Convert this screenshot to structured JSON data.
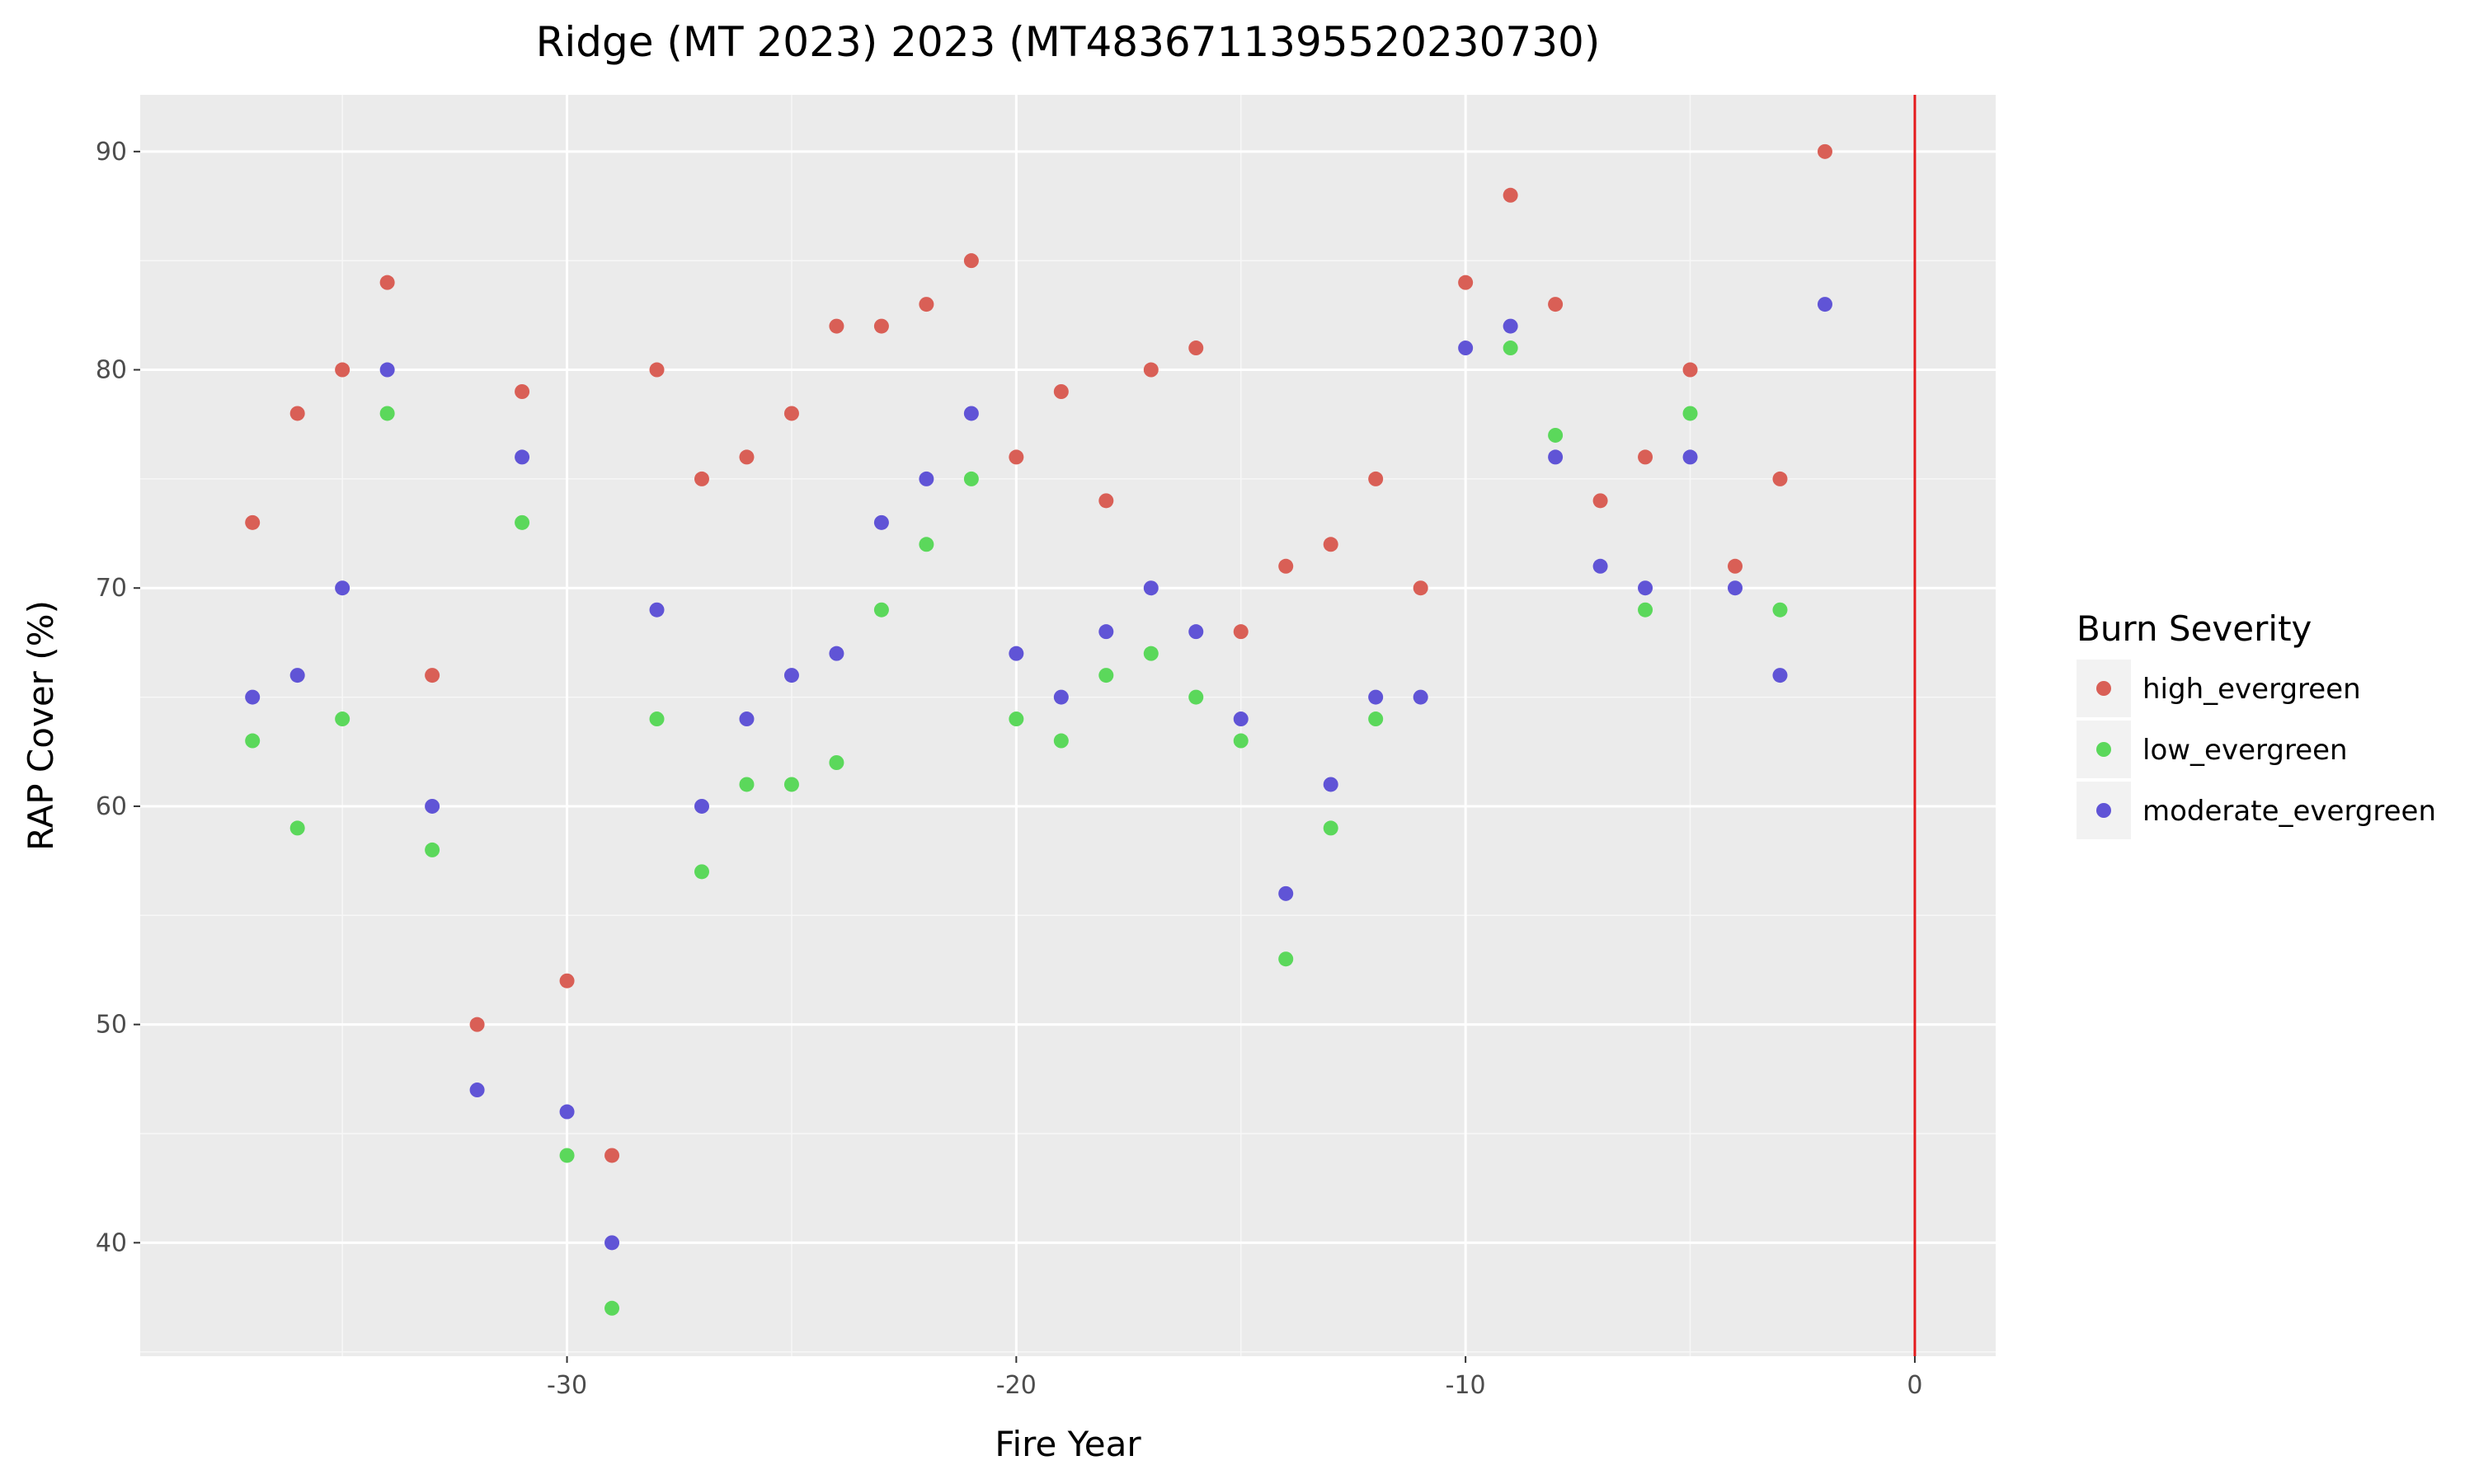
{
  "chart_data": {
    "type": "scatter",
    "title": "Ridge (MT 2023) 2023 (MT4836711395520230730)",
    "xlabel": "Fire Year",
    "ylabel": "RAP Cover (%)",
    "xlim": [
      -39.5,
      1.8
    ],
    "ylim": [
      34.8,
      92.6
    ],
    "xticks": [
      -30,
      -20,
      -10,
      0
    ],
    "yticks": [
      40,
      50,
      60,
      70,
      80,
      90
    ],
    "grid": true,
    "reference_line": {
      "x": 0,
      "color": "#e41a1c"
    },
    "legend": {
      "title": "Burn Severity",
      "position": "right"
    },
    "series": [
      {
        "name": "high_evergreen",
        "color": "#d95f56",
        "points": [
          [
            -37,
            73
          ],
          [
            -36,
            78
          ],
          [
            -35,
            80
          ],
          [
            -34,
            84
          ],
          [
            -33,
            66
          ],
          [
            -32,
            50
          ],
          [
            -31,
            79
          ],
          [
            -30,
            52
          ],
          [
            -29,
            44
          ],
          [
            -28,
            80
          ],
          [
            -27,
            75
          ],
          [
            -26,
            76
          ],
          [
            -25,
            78
          ],
          [
            -24,
            82
          ],
          [
            -23,
            82
          ],
          [
            -22,
            83
          ],
          [
            -21,
            85
          ],
          [
            -20,
            76
          ],
          [
            -19,
            79
          ],
          [
            -18,
            74
          ],
          [
            -17,
            80
          ],
          [
            -16,
            81
          ],
          [
            -15,
            68
          ],
          [
            -14,
            71
          ],
          [
            -13,
            72
          ],
          [
            -12,
            75
          ],
          [
            -11,
            70
          ],
          [
            -10,
            84
          ],
          [
            -9,
            88
          ],
          [
            -8,
            83
          ],
          [
            -7,
            74
          ],
          [
            -6,
            76
          ],
          [
            -5,
            80
          ],
          [
            -4,
            71
          ],
          [
            -3,
            75
          ],
          [
            -2,
            90
          ]
        ]
      },
      {
        "name": "low_evergreen",
        "color": "#5bd85b",
        "points": [
          [
            -37,
            63
          ],
          [
            -36,
            59
          ],
          [
            -35,
            64
          ],
          [
            -34,
            78
          ],
          [
            -33,
            58
          ],
          [
            -31,
            73
          ],
          [
            -30,
            44
          ],
          [
            -29,
            37
          ],
          [
            -28,
            64
          ],
          [
            -27,
            57
          ],
          [
            -26,
            61
          ],
          [
            -25,
            61
          ],
          [
            -24,
            62
          ],
          [
            -23,
            69
          ],
          [
            -22,
            72
          ],
          [
            -21,
            75
          ],
          [
            -20,
            64
          ],
          [
            -19,
            63
          ],
          [
            -18,
            66
          ],
          [
            -17,
            67
          ],
          [
            -16,
            65
          ],
          [
            -15,
            63
          ],
          [
            -14,
            53
          ],
          [
            -13,
            59
          ],
          [
            -12,
            64
          ],
          [
            -9,
            81
          ],
          [
            -8,
            77
          ],
          [
            -6,
            69
          ],
          [
            -5,
            78
          ],
          [
            -3,
            69
          ]
        ]
      },
      {
        "name": "moderate_evergreen",
        "color": "#6054d6",
        "points": [
          [
            -37,
            65
          ],
          [
            -36,
            66
          ],
          [
            -35,
            70
          ],
          [
            -34,
            80
          ],
          [
            -33,
            60
          ],
          [
            -32,
            47
          ],
          [
            -31,
            76
          ],
          [
            -30,
            46
          ],
          [
            -29,
            40
          ],
          [
            -28,
            69
          ],
          [
            -27,
            60
          ],
          [
            -26,
            64
          ],
          [
            -25,
            66
          ],
          [
            -24,
            67
          ],
          [
            -23,
            73
          ],
          [
            -22,
            75
          ],
          [
            -21,
            78
          ],
          [
            -20,
            67
          ],
          [
            -19,
            65
          ],
          [
            -18,
            68
          ],
          [
            -17,
            70
          ],
          [
            -16,
            68
          ],
          [
            -15,
            64
          ],
          [
            -14,
            56
          ],
          [
            -13,
            61
          ],
          [
            -12,
            65
          ],
          [
            -11,
            65
          ],
          [
            -10,
            81
          ],
          [
            -9,
            82
          ],
          [
            -8,
            76
          ],
          [
            -7,
            71
          ],
          [
            -6,
            70
          ],
          [
            -5,
            76
          ],
          [
            -4,
            70
          ],
          [
            -3,
            66
          ],
          [
            -2,
            83
          ]
        ]
      }
    ]
  }
}
